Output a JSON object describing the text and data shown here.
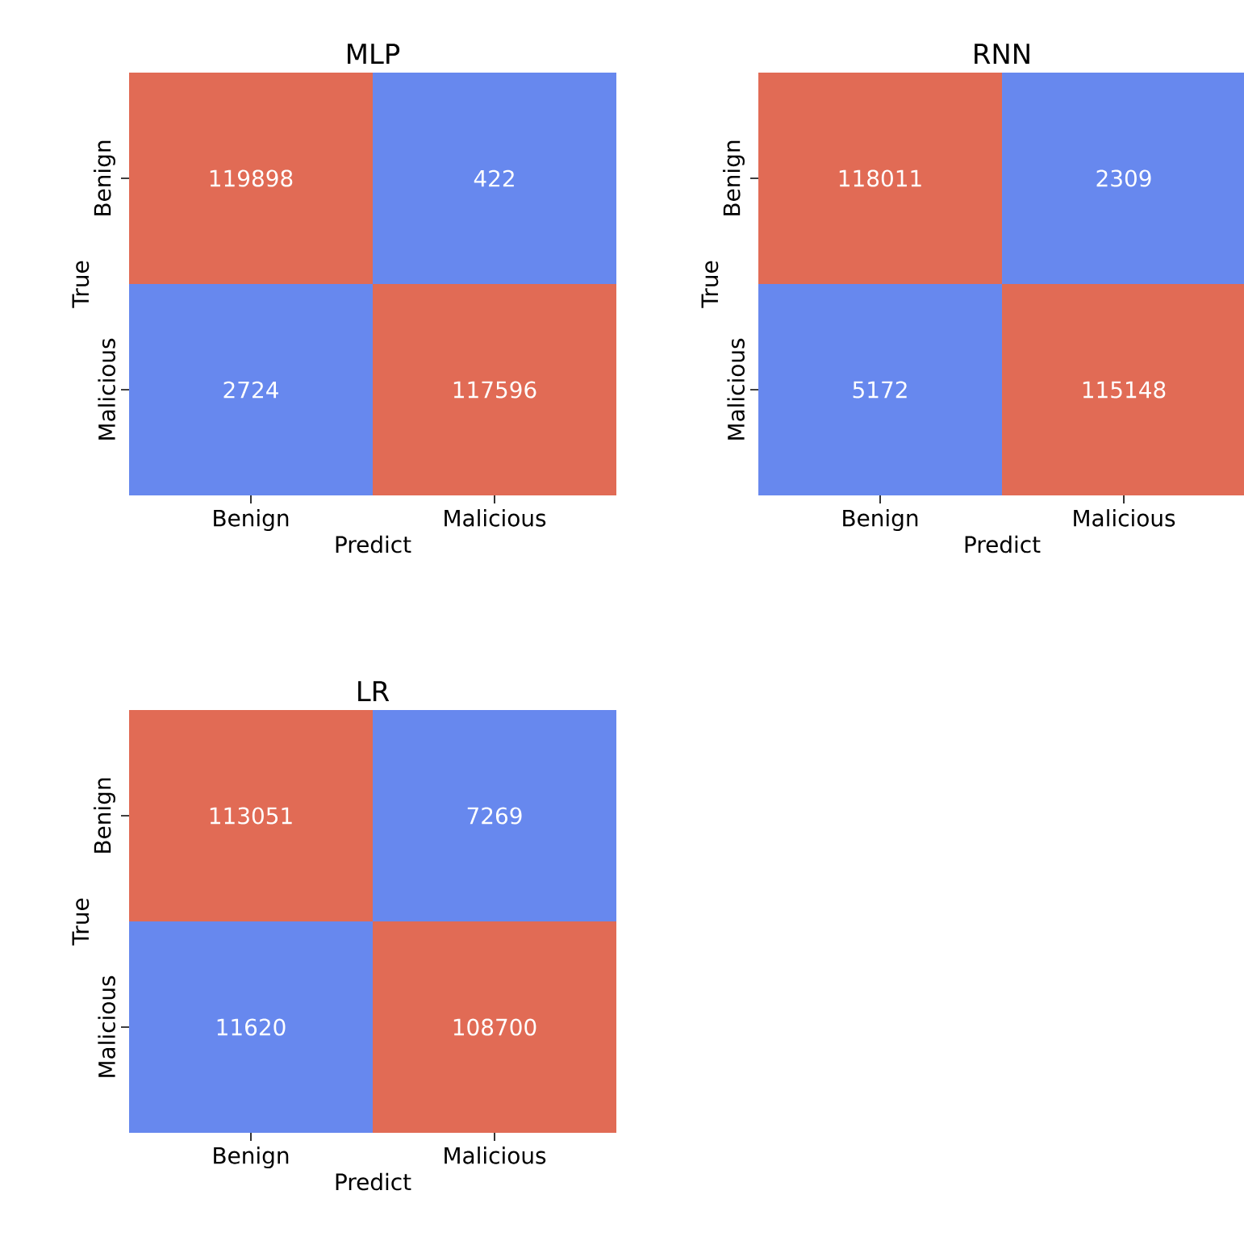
{
  "chart_data": [
    {
      "type": "heatmap",
      "data_labels": true,
      "title": "MLP",
      "xlabel": "Predict",
      "ylabel": "True",
      "categories": [
        "Benign",
        "Malicious"
      ],
      "y_categories": [
        "Benign",
        "Malicious"
      ],
      "cells": [
        [
          119898,
          422
        ],
        [
          2724,
          117596
        ]
      ],
      "colors": [
        [
          "#e16b55",
          "#6788ee"
        ],
        [
          "#6788ee",
          "#e16b55"
        ]
      ]
    },
    {
      "type": "heatmap",
      "data_labels": true,
      "title": "RNN",
      "xlabel": "Predict",
      "ylabel": "True",
      "categories": [
        "Benign",
        "Malicious"
      ],
      "y_categories": [
        "Benign",
        "Malicious"
      ],
      "cells": [
        [
          118011,
          2309
        ],
        [
          5172,
          115148
        ]
      ],
      "colors": [
        [
          "#e16b55",
          "#6788ee"
        ],
        [
          "#6788ee",
          "#e16b55"
        ]
      ]
    },
    {
      "type": "heatmap",
      "data_labels": true,
      "title": "LR",
      "xlabel": "Predict",
      "ylabel": "True",
      "categories": [
        "Benign",
        "Malicious"
      ],
      "y_categories": [
        "Benign",
        "Malicious"
      ],
      "cells": [
        [
          113051,
          7269
        ],
        [
          11620,
          108700
        ]
      ],
      "colors": [
        [
          "#e16b55",
          "#6788ee"
        ],
        [
          "#6788ee",
          "#e16b55"
        ]
      ]
    }
  ]
}
